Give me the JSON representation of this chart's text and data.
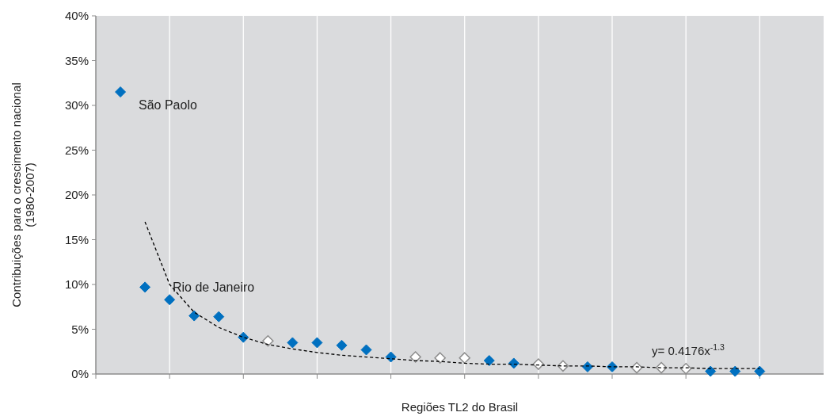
{
  "chart_data": {
    "type": "scatter",
    "xlabel": "Regiões TL2 do Brasil",
    "ylabel": "Contribuições para o crescimento nacional\n(1980-2007)",
    "categories": [
      null,
      null,
      null,
      null,
      null,
      null,
      null,
      null,
      null,
      null,
      null,
      null,
      null,
      null,
      null,
      null,
      null,
      null,
      null,
      null,
      null,
      null,
      null,
      null,
      null,
      null,
      null
    ],
    "ylim": [
      0,
      40
    ],
    "yticks": [
      {
        "value": 0,
        "label": "0%"
      },
      {
        "value": 5,
        "label": "5%"
      },
      {
        "value": 10,
        "label": "10%"
      },
      {
        "value": 15,
        "label": "15%"
      },
      {
        "value": 20,
        "label": "20%"
      },
      {
        "value": 25,
        "label": "25%"
      },
      {
        "value": 30,
        "label": "30%"
      },
      {
        "value": 35,
        "label": "35%"
      },
      {
        "value": 40,
        "label": "40%"
      }
    ],
    "grid": "x",
    "tick_labels": "y",
    "series": [
      {
        "marker": "diamond",
        "color": "#0070c0",
        "values": [
          31.5,
          9.7,
          8.3,
          6.5,
          6.4,
          4.1,
          null,
          3.5,
          3.5,
          3.2,
          2.7,
          1.9,
          null,
          null,
          null,
          1.5,
          1.2,
          null,
          null,
          0.8,
          0.8,
          null,
          null,
          null,
          0.3,
          0.3,
          0.3
        ]
      },
      {
        "marker": "diamond",
        "color": "#ffffff",
        "values": [
          null,
          null,
          null,
          null,
          null,
          null,
          3.7,
          null,
          null,
          null,
          null,
          null,
          1.9,
          1.8,
          1.8,
          null,
          null,
          1.1,
          0.9,
          null,
          null,
          0.7,
          0.7,
          0.6,
          null,
          null,
          null
        ]
      },
      {
        "type": "line",
        "marker": "none",
        "line_style": "dashed",
        "color": "#000000",
        "values": [
          null,
          17.0,
          10.0,
          6.9,
          5.2,
          4.1,
          3.3,
          2.8,
          2.4,
          2.1,
          1.9,
          1.7,
          1.5,
          1.4,
          1.2,
          1.1,
          1.1,
          1.0,
          0.9,
          0.9,
          0.8,
          0.8,
          0.7,
          0.7,
          0.6,
          0.6,
          0.6
        ]
      }
    ],
    "annotations": [
      "São Paolo",
      "Rio de Janeiro",
      "y= 0.4176x$^{-1.3}$"
    ]
  }
}
